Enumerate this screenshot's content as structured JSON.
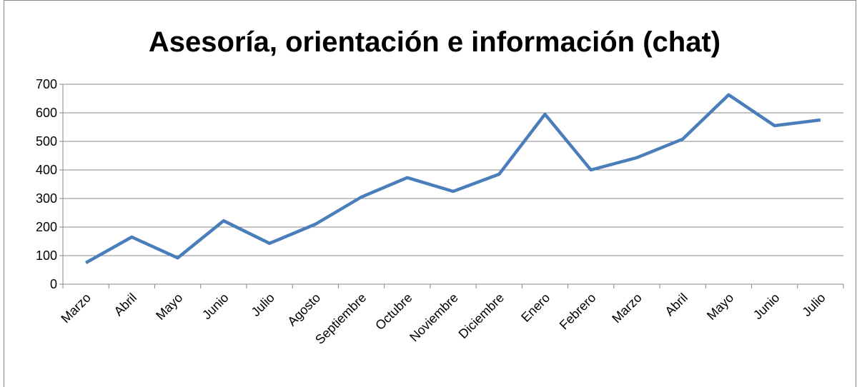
{
  "chart_data": {
    "type": "line",
    "title": "Asesoría, orientación e información (chat)",
    "categories": [
      "Marzo",
      "Abril",
      "Mayo",
      "Junio",
      "Julio",
      "Agosto",
      "Septiembre",
      "Octubre",
      "Noviembre",
      "Diciembre",
      "Enero",
      "Febrero",
      "Marzo",
      "Abril",
      "Mayo",
      "Junio",
      "Julio"
    ],
    "series": [
      {
        "name": "Asesoría, orientación e información (chat)",
        "color": "#4a7ebb",
        "values": [
          75,
          165,
          92,
          222,
          143,
          210,
          305,
          373,
          325,
          385,
          595,
          400,
          443,
          508,
          663,
          555,
          575
        ]
      }
    ],
    "ylim": [
      0,
      700
    ],
    "yticks": [
      0,
      100,
      200,
      300,
      400,
      500,
      600,
      700
    ],
    "grid": true
  }
}
